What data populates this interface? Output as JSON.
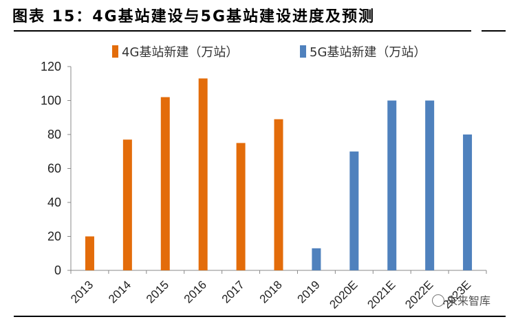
{
  "title": "图表 15：4G基站建设与5G基站建设进度及预测",
  "watermark": "未来智库",
  "watermark_icon": "wechat-icon",
  "colors": {
    "series_4g": "#E36C0A",
    "series_5g": "#4F81BD",
    "axis": "#888888"
  },
  "chart_data": {
    "type": "bar",
    "categories": [
      "2013",
      "2014",
      "2015",
      "2016",
      "2017",
      "2018",
      "2019",
      "2020E",
      "2021E",
      "2022E",
      "2023E"
    ],
    "series": [
      {
        "name": "4G基站新建（万站）",
        "values": [
          20,
          77,
          102,
          113,
          75,
          89,
          null,
          null,
          null,
          null,
          null
        ]
      },
      {
        "name": "5G基站新建（万站）",
        "values": [
          null,
          null,
          null,
          null,
          null,
          null,
          13,
          70,
          100,
          100,
          80
        ]
      }
    ],
    "ylim": [
      0,
      120
    ],
    "yticks": [
      0,
      20,
      40,
      60,
      80,
      100,
      120
    ],
    "xlabel": "",
    "ylabel": "",
    "legend": "top",
    "grid": false
  }
}
